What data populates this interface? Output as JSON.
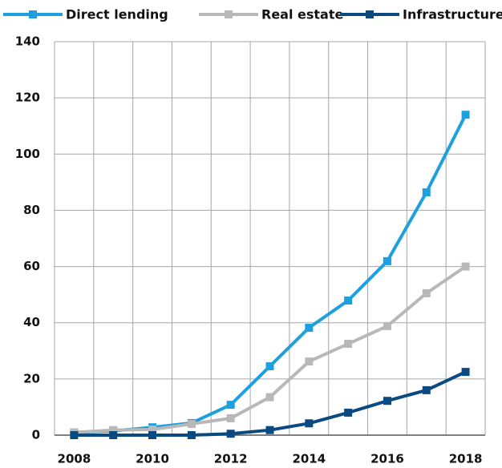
{
  "chart_data": {
    "type": "line",
    "categories": [
      "2008",
      null,
      "2010",
      null,
      "2012",
      null,
      "2014",
      null,
      "2016",
      null,
      "2018"
    ],
    "series": [
      {
        "name": "Direct lending",
        "color": "#1ea0de",
        "values": [
          1,
          1.5,
          2.8,
          4.3,
          10.8,
          24.5,
          38.2,
          47.9,
          61.9,
          86.4,
          114
        ]
      },
      {
        "name": "Real estate",
        "color": "#b8b8b8",
        "values": [
          1,
          1.8,
          2,
          4,
          6,
          13.5,
          26.2,
          32.5,
          38.8,
          50.5,
          60
        ]
      },
      {
        "name": "Infrastructure",
        "color": "#0b4a80",
        "values": [
          0,
          0,
          0,
          0,
          0.5,
          1.8,
          4.2,
          8,
          12.2,
          16,
          22.5
        ]
      }
    ],
    "ylim": [
      0,
      140
    ],
    "yticks": [
      0,
      20,
      40,
      60,
      80,
      100,
      120,
      140
    ],
    "grid": true,
    "legend": "top"
  }
}
